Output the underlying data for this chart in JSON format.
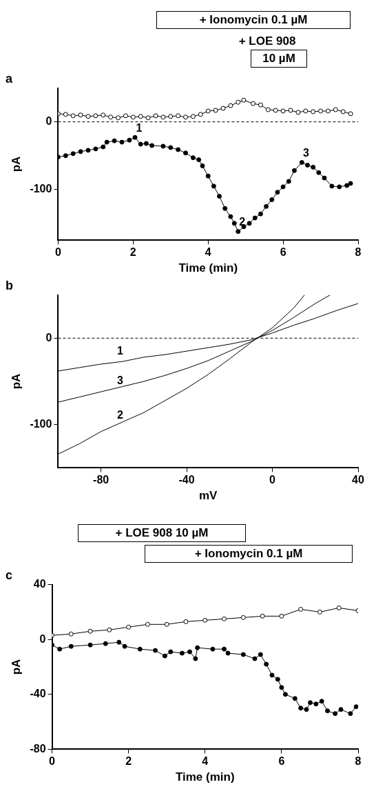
{
  "chart_data": [
    {
      "type": "line",
      "title": "a",
      "xlabel": "Time (min)",
      "ylabel": "pA",
      "xlim": [
        0,
        8
      ],
      "xticks": [
        0,
        2,
        4,
        6,
        8
      ],
      "ylim": [
        -175,
        50
      ],
      "yticks": [
        -100,
        0
      ],
      "grid": false,
      "legend": false,
      "marker": "circle",
      "line_style": "solid",
      "series": [
        {
          "color": "#ffffff",
          "x": [
            0,
            0.2,
            0.4,
            0.6,
            0.8,
            1.0,
            1.2,
            1.4,
            1.6,
            1.8,
            2.0,
            2.2,
            2.4,
            2.6,
            2.8,
            3.0,
            3.2,
            3.4,
            3.6,
            3.8,
            4.0,
            4.2,
            4.4,
            4.6,
            4.8,
            4.95,
            5.2,
            5.4,
            5.6,
            5.8,
            6.0,
            6.2,
            6.4,
            6.6,
            6.8,
            7.0,
            7.2,
            7.4,
            7.6,
            7.8
          ],
          "values": [
            12,
            11,
            9,
            10,
            8,
            9,
            10,
            7,
            6,
            9,
            7,
            8,
            6,
            9,
            7,
            8,
            9,
            7,
            8,
            11,
            16,
            17,
            20,
            24,
            29,
            32,
            27,
            25,
            18,
            17,
            16,
            17,
            14,
            16,
            15,
            16,
            16,
            18,
            15,
            12
          ]
        },
        {
          "color": "#000000",
          "x": [
            0,
            0.2,
            0.4,
            0.6,
            0.8,
            1.0,
            1.2,
            1.3,
            1.5,
            1.7,
            1.9,
            2.05,
            2.2,
            2.35,
            2.5,
            2.8,
            3.0,
            3.2,
            3.4,
            3.6,
            3.75,
            3.85,
            4.0,
            4.15,
            4.3,
            4.45,
            4.6,
            4.7,
            4.8,
            4.95,
            5.1,
            5.25,
            5.4,
            5.55,
            5.7,
            5.85,
            6.0,
            6.15,
            6.3,
            6.5,
            6.65,
            6.8,
            6.95,
            7.1,
            7.3,
            7.5,
            7.7,
            7.8
          ],
          "values": [
            -52,
            -50,
            -47,
            -44,
            -42,
            -40,
            -37,
            -30,
            -28,
            -30,
            -27,
            -23,
            -33,
            -32,
            -35,
            -36,
            -38,
            -41,
            -46,
            -53,
            -56,
            -65,
            -80,
            -95,
            -110,
            -128,
            -140,
            -150,
            -162,
            -155,
            -150,
            -142,
            -136,
            -125,
            -115,
            -104,
            -96,
            -88,
            -72,
            -60,
            -64,
            -67,
            -75,
            -83,
            -95,
            -96,
            -94,
            -91
          ]
        }
      ],
      "ref_lines": [
        {
          "axis": "y",
          "value": 0,
          "line_style": "dashed"
        }
      ],
      "annotations": [
        "+ Ionomycin 0.1 µM",
        "+ LOE 908",
        "10 µM",
        {
          "text": "1",
          "x": 2.05,
          "y": -23
        },
        {
          "text": "2",
          "x": 4.8,
          "y": -162
        },
        {
          "text": "3",
          "x": 6.5,
          "y": -60
        }
      ]
    },
    {
      "type": "line",
      "title": "b",
      "xlabel": "mV",
      "ylabel": "pA",
      "xlim": [
        -100,
        40
      ],
      "xticks": [
        -80,
        -40,
        0,
        40
      ],
      "ylim": [
        -150,
        50
      ],
      "yticks": [
        -100,
        0
      ],
      "grid": false,
      "legend": false,
      "marker": "none",
      "line_style": "solid",
      "series": [
        {
          "color": "#000000",
          "x": [
            -100,
            -90,
            -80,
            -70,
            -60,
            -50,
            -40,
            -30,
            -20,
            -10,
            0,
            10,
            20,
            30,
            40
          ],
          "values": [
            -38,
            -34,
            -30,
            -27,
            -22,
            -19,
            -15,
            -11,
            -7,
            -2,
            6,
            15,
            23,
            32,
            40
          ]
        },
        {
          "color": "#000000",
          "x": [
            -100,
            -90,
            -80,
            -70,
            -60,
            -50,
            -40,
            -30,
            -20,
            -10,
            0,
            10,
            15
          ],
          "values": [
            -134,
            -122,
            -108,
            -97,
            -86,
            -72,
            -58,
            -42,
            -24,
            -5,
            12,
            35,
            50
          ]
        },
        {
          "color": "#000000",
          "x": [
            -100,
            -90,
            -80,
            -70,
            -60,
            -50,
            -40,
            -30,
            -20,
            -10,
            0,
            10,
            20,
            27
          ],
          "values": [
            -74,
            -68,
            -62,
            -56,
            -50,
            -43,
            -35,
            -26,
            -15,
            -4,
            9,
            24,
            40,
            50
          ]
        }
      ],
      "ref_lines": [
        {
          "axis": "y",
          "value": 0,
          "line_style": "dashed"
        }
      ],
      "annotations": [
        {
          "text": "1",
          "x": -73,
          "y": -26
        },
        {
          "text": "2",
          "x": -73,
          "y": -100
        },
        {
          "text": "3",
          "x": -73,
          "y": -60
        }
      ]
    },
    {
      "type": "line",
      "title": "c",
      "xlabel": "Time (min)",
      "ylabel": "pA",
      "xlim": [
        0,
        8
      ],
      "xticks": [
        0,
        2,
        4,
        6,
        8
      ],
      "ylim": [
        -80,
        40
      ],
      "yticks": [
        -80,
        -40,
        0,
        40
      ],
      "grid": false,
      "legend": false,
      "marker": "circle",
      "line_style": "solid",
      "series": [
        {
          "color": "#ffffff",
          "x": [
            0,
            0.5,
            1,
            1.5,
            2,
            2.5,
            3,
            3.5,
            4,
            4.5,
            5,
            5.5,
            6,
            6.5,
            7,
            7.5,
            8
          ],
          "values": [
            3,
            4,
            6,
            7,
            9,
            11,
            11,
            13,
            14,
            15,
            16,
            17,
            17,
            22,
            20,
            23,
            21
          ]
        },
        {
          "color": "#000000",
          "x": [
            0,
            0.2,
            0.5,
            1.0,
            1.4,
            1.75,
            1.9,
            2.3,
            2.7,
            2.95,
            3.1,
            3.4,
            3.6,
            3.75,
            3.8,
            4.2,
            4.5,
            4.6,
            5.0,
            5.3,
            5.45,
            5.6,
            5.75,
            5.9,
            6.0,
            6.1,
            6.35,
            6.5,
            6.65,
            6.75,
            6.9,
            7.05,
            7.2,
            7.4,
            7.55,
            7.8,
            7.95
          ],
          "values": [
            -4,
            -7,
            -5,
            -4,
            -3,
            -2,
            -5,
            -7,
            -8,
            -12,
            -9,
            -10,
            -9,
            -14,
            -6,
            -7,
            -7,
            -10,
            -11,
            -14,
            -11,
            -18,
            -26,
            -29,
            -35,
            -40,
            -43,
            -50,
            -51,
            -46,
            -47,
            -45,
            -52,
            -54,
            -51,
            -54,
            -49
          ]
        }
      ],
      "annotations": [
        "+ LOE 908 10 µM",
        "+ Ionomycin 0.1 µM"
      ]
    }
  ]
}
